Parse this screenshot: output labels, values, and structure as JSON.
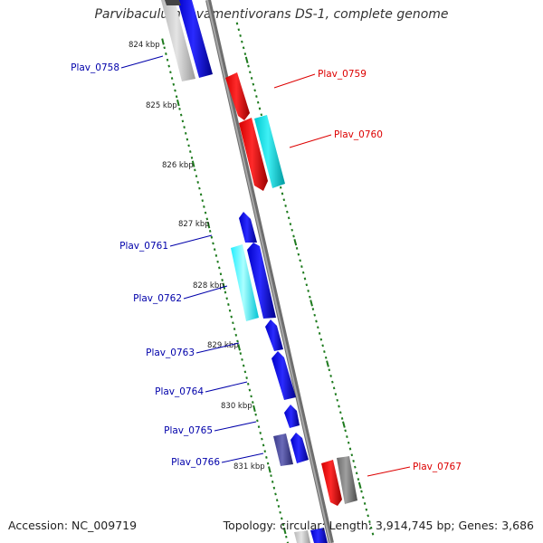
{
  "title": "Parvibaculum lavamentivorans DS-1, complete genome",
  "footer": {
    "accession": "Accession: NC_009719",
    "summary": "Topology: circular; Length: 3,914,745 bp; Genes: 3,686"
  },
  "colors": {
    "backbone": "#8a8a8a",
    "tick": "#1d7a1d",
    "forward_label": "#0000aa",
    "reverse_label": "#dd0000"
  },
  "scale_labels": [
    "824 kbp",
    "825 kbp",
    "826 kbp",
    "827 kbp",
    "828 kbp",
    "829 kbp",
    "830 kbp",
    "831 kbp"
  ],
  "genes": [
    {
      "label": "Plav_0758",
      "side": "left"
    },
    {
      "label": "Plav_0759",
      "side": "right"
    },
    {
      "label": "Plav_0760",
      "side": "right"
    },
    {
      "label": "Plav_0761",
      "side": "left"
    },
    {
      "label": "Plav_0762",
      "side": "left"
    },
    {
      "label": "Plav_0763",
      "side": "left"
    },
    {
      "label": "Plav_0764",
      "side": "left"
    },
    {
      "label": "Plav_0765",
      "side": "left"
    },
    {
      "label": "Plav_0766",
      "side": "left"
    },
    {
      "label": "Plav_0767",
      "side": "right"
    }
  ]
}
